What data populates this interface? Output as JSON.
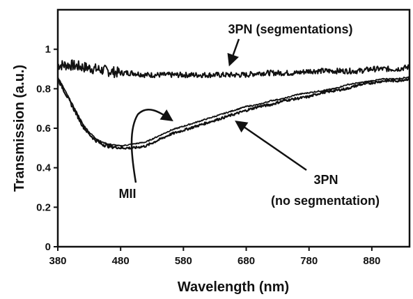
{
  "chart_data": {
    "type": "line",
    "xlabel": "Wavelength (nm)",
    "ylabel": "Transmission (a.u.)",
    "xlim": [
      380,
      940
    ],
    "ylim": [
      0,
      1.2
    ],
    "x_ticks": [
      380,
      480,
      580,
      680,
      780,
      880
    ],
    "y_ticks": [
      0,
      0.2,
      0.4,
      0.6,
      0.8,
      1
    ],
    "grid": false,
    "legend": "none",
    "series": [
      {
        "name": "3PN (segmentations)",
        "color": "#111111",
        "x": [
          380,
          400,
          420,
          440,
          460,
          480,
          500,
          520,
          540,
          560,
          580,
          600,
          620,
          640,
          660,
          680,
          700,
          720,
          740,
          760,
          780,
          800,
          820,
          840,
          860,
          880,
          900,
          920,
          940
        ],
        "y": [
          0.92,
          0.92,
          0.91,
          0.9,
          0.89,
          0.88,
          0.88,
          0.87,
          0.87,
          0.87,
          0.87,
          0.87,
          0.87,
          0.87,
          0.87,
          0.87,
          0.88,
          0.88,
          0.88,
          0.88,
          0.89,
          0.89,
          0.89,
          0.89,
          0.89,
          0.9,
          0.9,
          0.9,
          0.91
        ]
      },
      {
        "name": "MII",
        "color": "#111111",
        "x": [
          380,
          390,
          400,
          410,
          420,
          430,
          440,
          450,
          460,
          480,
          500,
          520,
          540,
          560,
          580,
          600,
          620,
          640,
          660,
          680,
          700,
          720,
          740,
          760,
          780,
          800,
          820,
          840,
          860,
          880,
          900,
          920,
          940
        ],
        "y": [
          0.86,
          0.8,
          0.74,
          0.68,
          0.62,
          0.58,
          0.55,
          0.53,
          0.52,
          0.51,
          0.52,
          0.53,
          0.56,
          0.59,
          0.61,
          0.63,
          0.65,
          0.67,
          0.69,
          0.71,
          0.72,
          0.74,
          0.75,
          0.77,
          0.78,
          0.79,
          0.8,
          0.82,
          0.83,
          0.84,
          0.85,
          0.85,
          0.86
        ]
      },
      {
        "name": "3PN (no segmentation)",
        "color": "#111111",
        "x": [
          380,
          390,
          400,
          410,
          420,
          430,
          440,
          450,
          460,
          480,
          500,
          520,
          540,
          560,
          580,
          600,
          620,
          640,
          660,
          680,
          700,
          720,
          740,
          760,
          780,
          800,
          820,
          840,
          860,
          880,
          900,
          920,
          940
        ],
        "y": [
          0.85,
          0.79,
          0.73,
          0.67,
          0.61,
          0.57,
          0.54,
          0.52,
          0.51,
          0.5,
          0.5,
          0.51,
          0.54,
          0.57,
          0.59,
          0.61,
          0.63,
          0.65,
          0.67,
          0.69,
          0.71,
          0.72,
          0.74,
          0.75,
          0.76,
          0.78,
          0.79,
          0.8,
          0.82,
          0.83,
          0.84,
          0.84,
          0.85
        ]
      }
    ],
    "annotations": [
      {
        "text": "3PN (segmentations)",
        "x": 650,
        "y": 0.87
      },
      {
        "text": "MII",
        "x": 505,
        "y": 0.57
      },
      {
        "text": "3PN",
        "x": 655,
        "y": 0.62
      },
      {
        "text": "(no segmentation)",
        "x": 655,
        "y": 0.62
      }
    ]
  }
}
